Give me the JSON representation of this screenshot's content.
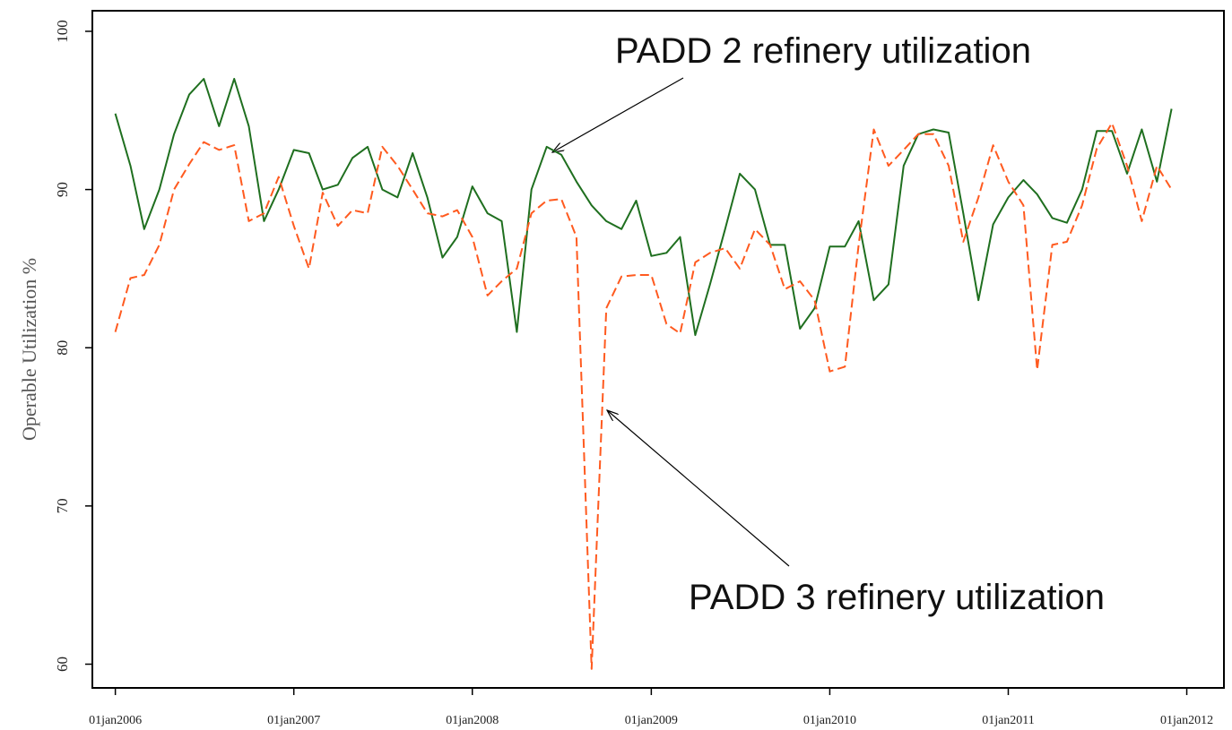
{
  "chart_data": {
    "type": "line",
    "y_label": "Operable Utilization %",
    "annotations": [
      "PADD 2 refinery utilization",
      "PADD 3 refinery utilization"
    ],
    "x": [
      "2006-01-01",
      "2006-02-01",
      "2006-03-01",
      "2006-04-01",
      "2006-05-01",
      "2006-06-01",
      "2006-07-01",
      "2006-08-01",
      "2006-09-01",
      "2006-10-01",
      "2006-11-01",
      "2006-12-01",
      "2007-01-01",
      "2007-02-01",
      "2007-03-01",
      "2007-04-01",
      "2007-05-01",
      "2007-06-01",
      "2007-07-01",
      "2007-08-01",
      "2007-09-01",
      "2007-10-01",
      "2007-11-01",
      "2007-12-01",
      "2008-01-01",
      "2008-02-01",
      "2008-03-01",
      "2008-04-01",
      "2008-05-01",
      "2008-06-01",
      "2008-07-01",
      "2008-08-01",
      "2008-09-01",
      "2008-10-01",
      "2008-11-01",
      "2008-12-01",
      "2009-01-01",
      "2009-02-01",
      "2009-03-01",
      "2009-04-01",
      "2009-05-01",
      "2009-06-01",
      "2009-07-01",
      "2009-08-01",
      "2009-09-01",
      "2009-10-01",
      "2009-11-01",
      "2009-12-01",
      "2010-01-01",
      "2010-02-01",
      "2010-03-01",
      "2010-04-01",
      "2010-05-01",
      "2010-06-01",
      "2010-07-01",
      "2010-08-01",
      "2010-09-01",
      "2010-10-01",
      "2010-11-01",
      "2010-12-01",
      "2011-01-01",
      "2011-02-01",
      "2011-03-01",
      "2011-04-01",
      "2011-05-01",
      "2011-06-01",
      "2011-07-01",
      "2011-08-01",
      "2011-09-01",
      "2011-10-01",
      "2011-11-01",
      "2011-12-01"
    ],
    "series": [
      {
        "color": "#1f6f1f",
        "dash": false,
        "values": [
          94.8,
          91.5,
          87.5,
          90,
          93.5,
          96,
          97,
          94,
          97,
          94,
          88,
          90,
          92.5,
          92.3,
          90,
          90.3,
          92,
          92.7,
          90,
          89.5,
          92.3,
          89.5,
          85.7,
          87,
          90.2,
          88.5,
          88,
          81,
          90,
          92.7,
          92.2,
          90.5,
          89,
          88,
          87.5,
          89.3,
          85.8,
          86,
          87,
          80.8,
          84,
          87.5,
          91,
          90,
          86.5,
          86.5,
          81.2,
          82.5,
          86.4,
          86.4,
          88,
          83,
          84,
          91.5,
          93.5,
          93.8,
          93.6,
          88.5,
          83,
          87.8,
          89.5,
          90.6,
          89.7,
          88.2,
          87.9,
          90,
          93.7,
          93.7,
          91,
          93.8,
          90.5,
          95.1
        ]
      },
      {
        "color": "#ff5a1f",
        "dash": true,
        "values": [
          81,
          84.4,
          84.6,
          86.5,
          90,
          91.6,
          93,
          92.5,
          92.8,
          88,
          88.5,
          90.8,
          87.7,
          85,
          89.8,
          87.7,
          88.7,
          88.5,
          92.7,
          91.5,
          90,
          88.5,
          88.3,
          88.7,
          87,
          83.3,
          84.2,
          85,
          88.5,
          89.3,
          89.4,
          87,
          59.7,
          82.5,
          84.5,
          84.6,
          84.6,
          81.5,
          80.9,
          85.4,
          86,
          86.3,
          85,
          87.5,
          86.5,
          83.7,
          84.2,
          83,
          78.5,
          78.8,
          86.5,
          93.8,
          91.5,
          92.5,
          93.5,
          93.5,
          91.5,
          86.7,
          89.5,
          92.8,
          90.5,
          89,
          78.6,
          86.5,
          86.7,
          89,
          92.6,
          94.2,
          91.5,
          88,
          91.5,
          90
        ]
      }
    ],
    "xlim": [
      "2005-11-15",
      "2012-03-17"
    ],
    "xticks": [
      {
        "value": "2006-01-01",
        "label": "01jan2006"
      },
      {
        "value": "2007-01-01",
        "label": "01jan2007"
      },
      {
        "value": "2008-01-01",
        "label": "01jan2008"
      },
      {
        "value": "2009-01-01",
        "label": "01jan2009"
      },
      {
        "value": "2010-01-01",
        "label": "01jan2010"
      },
      {
        "value": "2011-01-01",
        "label": "01jan2011"
      },
      {
        "value": "2012-01-01",
        "label": "01jan2012"
      }
    ],
    "ylim": [
      58.5,
      101.3
    ],
    "yticks": [
      60,
      70,
      80,
      90,
      100
    ],
    "grid": false
  }
}
